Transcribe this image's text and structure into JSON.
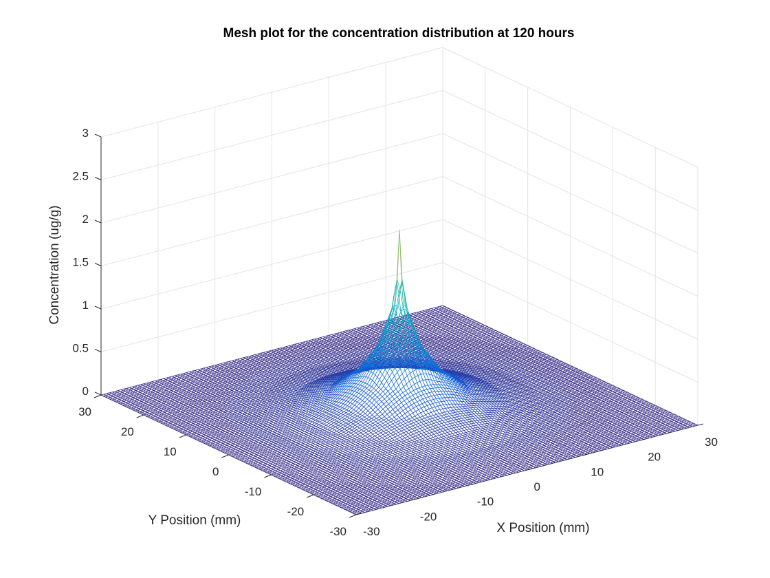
{
  "chart_data": {
    "type": "mesh3d",
    "title": "Mesh plot for the concentration distribution at 120 hours",
    "xlabel": "X Position (mm)",
    "ylabel": "Y Position (mm)",
    "zlabel": "Concentration (ug/g)",
    "xlim": [
      -30,
      30
    ],
    "ylim": [
      -30,
      30
    ],
    "zlim": [
      0,
      3
    ],
    "xticks": [
      "-30",
      "-20",
      "-10",
      "0",
      "10",
      "20",
      "30"
    ],
    "yticks": [
      "-30",
      "-20",
      "-10",
      "0",
      "10",
      "20",
      "30"
    ],
    "zticks": [
      "0",
      "0.5",
      "1",
      "1.5",
      "2",
      "2.5",
      "3"
    ],
    "grid": true,
    "colormap": "parula",
    "grid_points": 121,
    "peak": {
      "x": 0,
      "y": 0,
      "z": 2.1
    },
    "shoulder_values": [
      {
        "r_mm": 0.5,
        "z": 1.5
      },
      {
        "r_mm": 1.0,
        "z": 1.2
      },
      {
        "r_mm": 3.0,
        "z": 0.75
      },
      {
        "r_mm": 6.0,
        "z": 0.42
      },
      {
        "r_mm": 10.0,
        "z": 0.2
      },
      {
        "r_mm": 15.0,
        "z": 0.08
      },
      {
        "r_mm": 20.0,
        "z": 0.03
      },
      {
        "r_mm": 30.0,
        "z": 0.0
      }
    ]
  }
}
